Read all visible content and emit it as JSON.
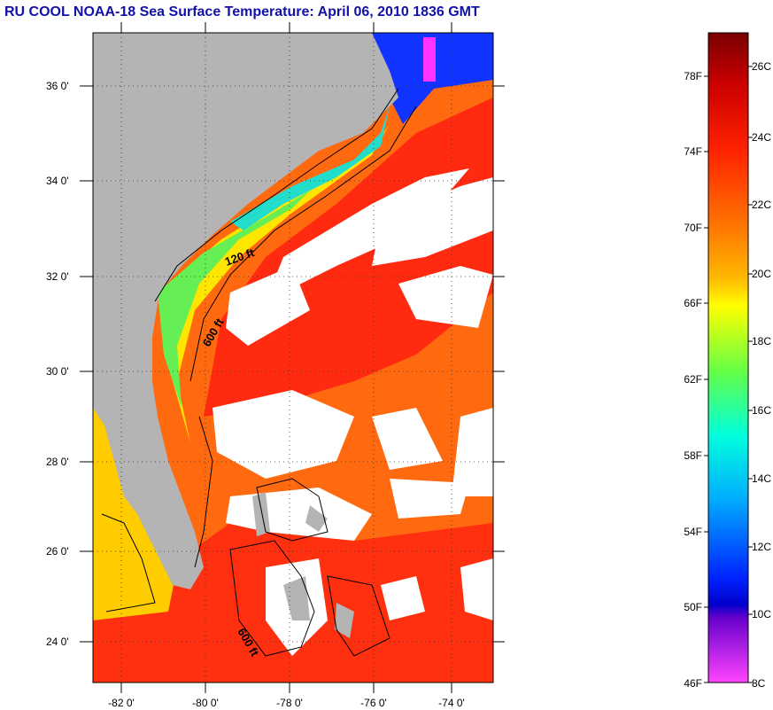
{
  "title": "RU COOL  NOAA-18  Sea Surface Temperature:  April 06, 2010 1836 GMT",
  "map": {
    "lat_labels": [
      "36 0'",
      "34 0'",
      "32 0'",
      "30 0'",
      "28 0'",
      "26 0'",
      "24 0'"
    ],
    "lon_labels": [
      "-82 0'",
      "-80 0'",
      "-78 0'",
      "-76 0'",
      "-74 0'"
    ],
    "contour_labels": [
      "120 ft",
      "600 ft",
      "600 ft"
    ],
    "colors": {
      "land": "#b4b4b4",
      "cloud": "#ffffff",
      "contour": "#000000"
    }
  },
  "colorbar": {
    "fahrenheit": [
      "78F",
      "74F",
      "70F",
      "66F",
      "62F",
      "58F",
      "54F",
      "50F",
      "46F"
    ],
    "celsius": [
      "26C",
      "24C",
      "22C",
      "20C",
      "18C",
      "16C",
      "14C",
      "12C",
      "10C",
      "8C"
    ],
    "colors": [
      "#7a0000",
      "#cc0000",
      "#ff1a00",
      "#ff6600",
      "#ff9900",
      "#ffcc00",
      "#ffff00",
      "#99ff33",
      "#33ff66",
      "#00ffcc",
      "#00ccff",
      "#0066ff",
      "#0000ff",
      "#9900cc",
      "#ff33ff"
    ]
  }
}
